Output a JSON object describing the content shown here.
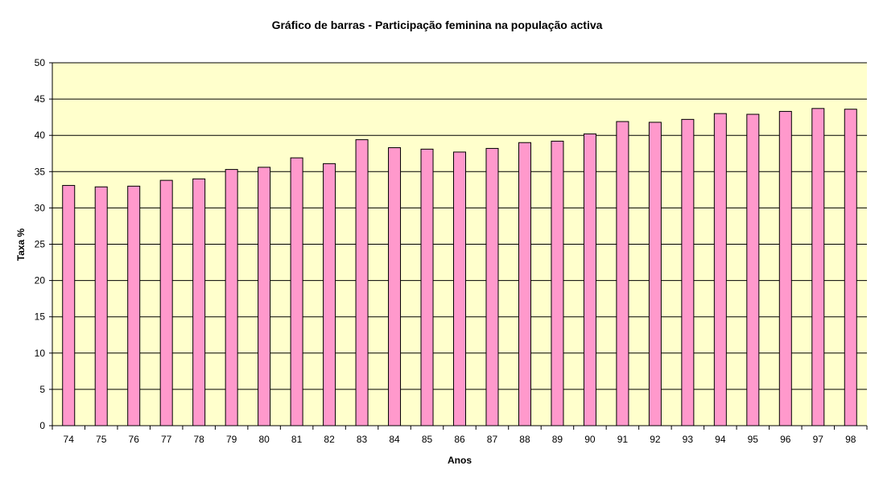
{
  "chart_data": {
    "type": "bar",
    "title": "Gráfico de barras - Participação feminina na população activa",
    "xlabel": "Anos",
    "ylabel": "Taxa %",
    "categories": [
      "74",
      "75",
      "76",
      "77",
      "78",
      "79",
      "80",
      "81",
      "82",
      "83",
      "84",
      "85",
      "86",
      "87",
      "88",
      "89",
      "90",
      "91",
      "92",
      "93",
      "94",
      "95",
      "96",
      "97",
      "98"
    ],
    "values": [
      33.1,
      32.9,
      33.0,
      33.8,
      34.0,
      35.3,
      35.6,
      36.9,
      36.1,
      39.4,
      38.3,
      38.1,
      37.7,
      38.2,
      39.0,
      39.2,
      40.2,
      41.9,
      41.8,
      42.2,
      43.0,
      42.9,
      43.3,
      43.7,
      43.6
    ],
    "ylim": [
      0,
      50
    ],
    "yticks": [
      0,
      5,
      10,
      15,
      20,
      25,
      30,
      35,
      40,
      45,
      50
    ],
    "grid": true,
    "legend": "none",
    "colors": {
      "bar_fill": "#FF99CC",
      "bar_stroke": "#000000",
      "plot_background": "#FFFFCC",
      "grid": "#000000"
    }
  }
}
